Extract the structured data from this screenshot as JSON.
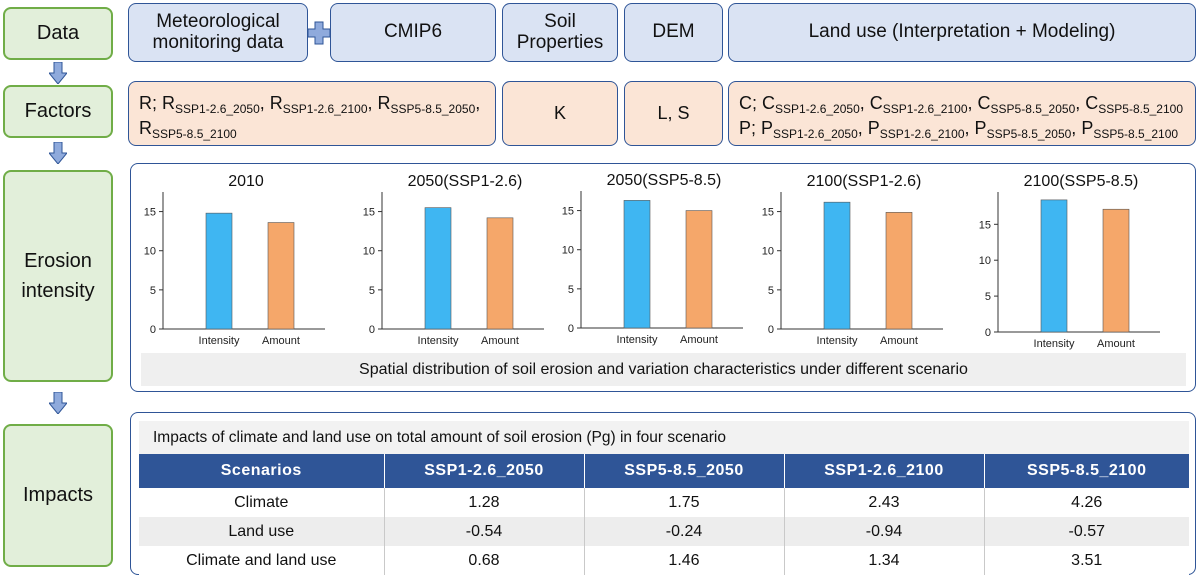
{
  "stages": [
    "Data",
    "Factors",
    "Erosion intensity",
    "Impacts"
  ],
  "data_sources": {
    "meteorological": "Meteorological monitoring data",
    "cmip6": "CMIP6",
    "soil": "Soil Properties",
    "dem": "DEM",
    "land_use": "Land use (Interpretation + Modeling)"
  },
  "factors": {
    "r_prefix": "R; ",
    "r_base": "R",
    "r_subs": [
      "SSP1-2.6_2050",
      "SSP1-2.6_2100",
      "SSP5-8.5_2050",
      "SSP5-8.5_2100"
    ],
    "k": "K",
    "ls": "L, S",
    "c_prefix": "C; ",
    "c_base": "C",
    "p_prefix": "P; ",
    "p_base": "P",
    "cp_subs": [
      "SSP1-2.6_2050",
      "SSP1-2.6_2100",
      "SSP5-8.5_2050",
      "SSP5-8.5_2100"
    ]
  },
  "erosion_caption": "Spatial distribution of soil erosion and variation characteristics under different scenario",
  "colors": {
    "intensity": "#3fb6f2",
    "amount": "#f5a76a",
    "header": "#2f5597",
    "stage_fill": "#e2efda",
    "stage_border": "#70ad47",
    "data_fill": "#dae3f3",
    "factor_fill": "#fbe5d6"
  },
  "chart_data": [
    {
      "type": "bar",
      "title": "2010",
      "categories": [
        "Intensity",
        "Amount"
      ],
      "values": [
        14.8,
        13.6
      ],
      "ylim": [
        0,
        17.5
      ],
      "yticks": [
        0,
        5,
        10,
        15
      ]
    },
    {
      "type": "bar",
      "title": "2050(SSP1-2.6)",
      "categories": [
        "Intensity",
        "Amount"
      ],
      "values": [
        15.5,
        14.2
      ],
      "ylim": [
        0,
        17.5
      ],
      "yticks": [
        0,
        5,
        10,
        15
      ]
    },
    {
      "type": "bar",
      "title": "2050(SSP5-8.5)",
      "categories": [
        "Intensity",
        "Amount"
      ],
      "values": [
        16.3,
        15.0
      ],
      "ylim": [
        0,
        17.5
      ],
      "yticks": [
        0,
        5,
        10,
        15
      ]
    },
    {
      "type": "bar",
      "title": "2100(SSP1-2.6)",
      "categories": [
        "Intensity",
        "Amount"
      ],
      "values": [
        16.2,
        14.9
      ],
      "ylim": [
        0,
        17.5
      ],
      "yticks": [
        0,
        5,
        10,
        15
      ]
    },
    {
      "type": "bar",
      "title": "2100(SSP5-8.5)",
      "categories": [
        "Intensity",
        "Amount"
      ],
      "values": [
        18.4,
        17.1
      ],
      "ylim": [
        0,
        19.5
      ],
      "yticks": [
        0,
        5,
        10,
        15
      ]
    }
  ],
  "impacts": {
    "title": "Impacts of climate and land use on total amount of soil erosion (Pg) in four scenario",
    "headers": [
      "Scenarios",
      "SSP1-2.6_2050",
      "SSP5-8.5_2050",
      "SSP1-2.6_2100",
      "SSP5-8.5_2100"
    ],
    "rows": [
      [
        "Climate",
        "1.28",
        "1.75",
        "2.43",
        "4.26"
      ],
      [
        "Land use",
        "-0.54",
        "-0.24",
        "-0.94",
        "-0.57"
      ],
      [
        "Climate and land use",
        "0.68",
        "1.46",
        "1.34",
        "3.51"
      ]
    ]
  }
}
